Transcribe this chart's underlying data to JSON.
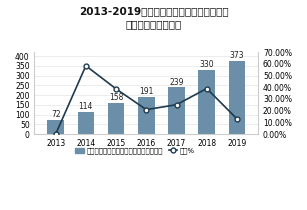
{
  "title_line1": "2013-2019年中国快递行业瓦楞纸包装行业",
  "title_line2": "市场规模及增长走势",
  "years": [
    "2013",
    "2014",
    "2015",
    "2016",
    "2017",
    "2018",
    "2019"
  ],
  "bar_values": [
    72,
    114,
    158,
    191,
    239,
    330,
    373
  ],
  "growth_values": [
    0.0,
    0.5833,
    0.386,
    0.2089,
    0.2513,
    0.3891,
    0.1303
  ],
  "bar_color": "#6b8fa8",
  "line_color": "#1f3a4d",
  "marker_face": "#ffffff",
  "bar_labels": [
    "72",
    "114",
    "158",
    "191",
    "239",
    "330",
    "373"
  ],
  "ylim_left": [
    0,
    420
  ],
  "ylim_right": [
    0,
    0.7
  ],
  "yticks_left": [
    0,
    50,
    100,
    150,
    200,
    250,
    300,
    350,
    400
  ],
  "yticks_right": [
    0.0,
    0.1,
    0.2,
    0.3,
    0.4,
    0.5,
    0.6,
    0.7
  ],
  "ytick_labels_right": [
    "0.00%",
    "10.00%",
    "20.00%",
    "30.00%",
    "40.00%",
    "50.00%",
    "60.00%",
    "70.00%"
  ],
  "legend_bar": "快递行业瓦楞纸包装行业市场规模：亿元",
  "legend_line": "增长%",
  "background_color": "#ffffff",
  "title_fontsize": 7.5,
  "tick_fontsize": 5.5,
  "label_fontsize": 5.5,
  "legend_fontsize": 5.0,
  "bar_width": 0.55
}
